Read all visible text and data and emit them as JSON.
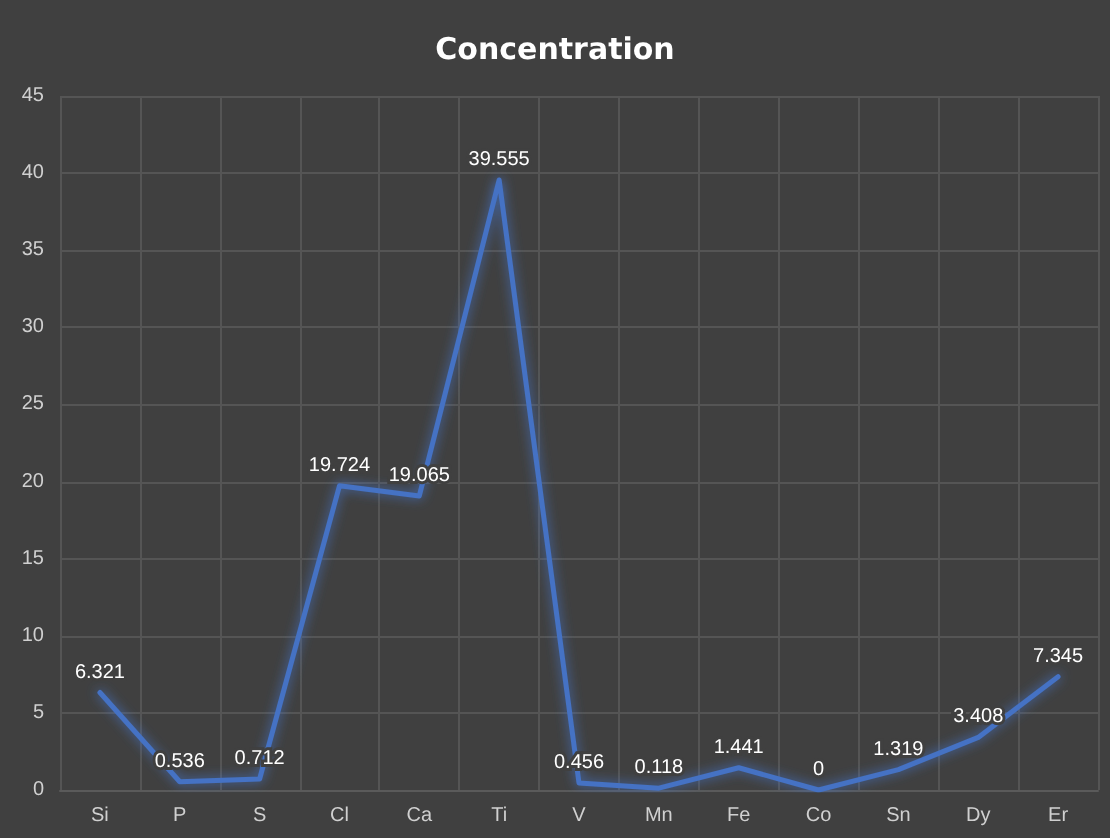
{
  "chart_data": {
    "type": "line",
    "title": "Concentration",
    "categories": [
      "Si",
      "P",
      "S",
      "Cl",
      "Ca",
      "Ti",
      "V",
      "Mn",
      "Fe",
      "Co",
      "Sn",
      "Dy",
      "Er"
    ],
    "series": [
      {
        "color": "#4472c4",
        "values": [
          6.321,
          0.536,
          0.712,
          19.724,
          19.065,
          39.555,
          0.456,
          0.118,
          1.441,
          0,
          1.319,
          3.408,
          7.345
        ]
      }
    ],
    "ylim": [
      0,
      45
    ],
    "yticks": [
      0,
      5,
      10,
      15,
      20,
      25,
      30,
      35,
      40,
      45
    ],
    "grid": true,
    "data_labels": true,
    "marker": "none",
    "line_style": "solid"
  }
}
